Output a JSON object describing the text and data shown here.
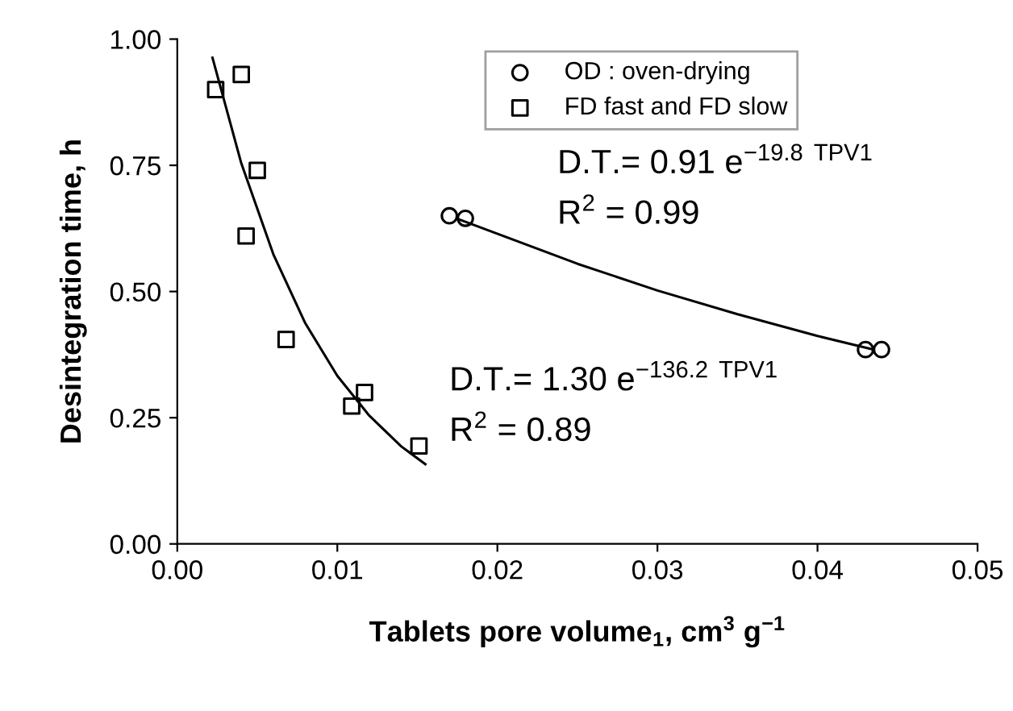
{
  "chart_data": {
    "type": "scatter",
    "xlabel": "Tablets pore volume$_{1}$, cm$^{3}$ g$^{−1}$",
    "ylabel": "Desintegration time, h",
    "xlim": [
      0,
      0.05
    ],
    "xticks": [
      {
        "value": 0,
        "label": "0.00"
      },
      {
        "value": 0.01,
        "label": "0.01"
      },
      {
        "value": 0.02,
        "label": "0.02"
      },
      {
        "value": 0.03,
        "label": "0.03"
      },
      {
        "value": 0.04,
        "label": "0.04"
      },
      {
        "value": 0.05,
        "label": "0.05"
      }
    ],
    "ylim": [
      0,
      1
    ],
    "yticks": [
      {
        "value": 0,
        "label": "0.00"
      },
      {
        "value": 0.25,
        "label": "0.25"
      },
      {
        "value": 0.5,
        "label": "0.50"
      },
      {
        "value": 0.75,
        "label": "0.75"
      },
      {
        "value": 1,
        "label": "1.00"
      }
    ],
    "grid": false,
    "legend": "top",
    "marker": "circle",
    "series": [
      {
        "name": "OD : oven-drying",
        "color": "#000000",
        "x": [
          0.017,
          0.018,
          0.043,
          0.044
        ],
        "values": [
          0.65,
          0.645,
          0.385,
          0.385
        ]
      },
      {
        "name": "FD fast and FD slow",
        "marker": "square",
        "color": "#000000",
        "x": [
          0.0024,
          0.004,
          0.005,
          0.0043,
          0.0068,
          0.0109,
          0.0117,
          0.0151
        ],
        "values": [
          0.9,
          0.93,
          0.74,
          0.61,
          0.405,
          0.273,
          0.3,
          0.194
        ]
      },
      {
        "type": "line",
        "marker": "none",
        "color": "#000000",
        "x": [
          0.0022,
          0.004,
          0.006,
          0.008,
          0.01,
          0.012,
          0.014,
          0.0155
        ],
        "values": [
          0.963,
          0.754,
          0.574,
          0.437,
          0.333,
          0.254,
          0.193,
          0.158
        ]
      },
      {
        "type": "line",
        "marker": "none",
        "color": "#000000",
        "x": [
          0.0175,
          0.025,
          0.03,
          0.035,
          0.04,
          0.0435
        ],
        "values": [
          0.644,
          0.555,
          0.502,
          0.455,
          0.412,
          0.385
        ]
      }
    ],
    "annotations": [
      "D.T.= 0.91 e$^{−19.8 TPV1}$",
      "R$^{2}$ = 0.99",
      "D.T.= 1.30 e$^{−136.2 TPV1}$",
      "R$^{2}$ = 0.89"
    ]
  }
}
